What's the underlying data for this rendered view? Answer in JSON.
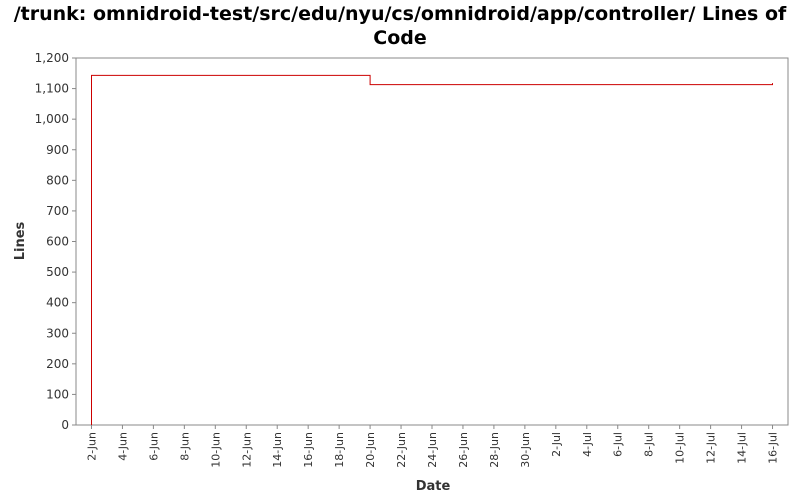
{
  "chart_data": {
    "type": "line",
    "title": "/trunk: omnidroid-test/src/edu/nyu/cs/omnidroid/app/controller/ Lines of Code",
    "xlabel": "Date",
    "ylabel": "Lines",
    "ylim": [
      0,
      1200
    ],
    "yticks": [
      0,
      100,
      200,
      300,
      400,
      500,
      600,
      700,
      800,
      900,
      1000,
      1100,
      1200
    ],
    "ytick_labels": [
      "0",
      "100",
      "200",
      "300",
      "400",
      "500",
      "600",
      "700",
      "800",
      "900",
      "1,000",
      "1,100",
      "1,200"
    ],
    "xlim": [
      "2008-06-01",
      "2008-07-17"
    ],
    "xticks": [
      "2008-06-02",
      "2008-06-04",
      "2008-06-06",
      "2008-06-08",
      "2008-06-10",
      "2008-06-12",
      "2008-06-14",
      "2008-06-16",
      "2008-06-18",
      "2008-06-20",
      "2008-06-22",
      "2008-06-24",
      "2008-06-26",
      "2008-06-28",
      "2008-06-30",
      "2008-07-02",
      "2008-07-04",
      "2008-07-06",
      "2008-07-08",
      "2008-07-10",
      "2008-07-12",
      "2008-07-14",
      "2008-07-16"
    ],
    "xtick_labels": [
      "2-Jun",
      "4-Jun",
      "6-Jun",
      "8-Jun",
      "10-Jun",
      "12-Jun",
      "14-Jun",
      "16-Jun",
      "18-Jun",
      "20-Jun",
      "22-Jun",
      "24-Jun",
      "26-Jun",
      "28-Jun",
      "30-Jun",
      "2-Jul",
      "4-Jul",
      "6-Jul",
      "8-Jul",
      "10-Jul",
      "12-Jul",
      "14-Jul",
      "16-Jul"
    ],
    "step": true,
    "series": [
      {
        "color": "#cc0000",
        "x": [
          "2008-06-02",
          "2008-06-02",
          "2008-06-20",
          "2008-06-20",
          "2008-07-16",
          "2008-07-16"
        ],
        "y": [
          0,
          1143,
          1143,
          1113,
          1113,
          1118
        ]
      }
    ],
    "grid": false,
    "legend": "none"
  }
}
